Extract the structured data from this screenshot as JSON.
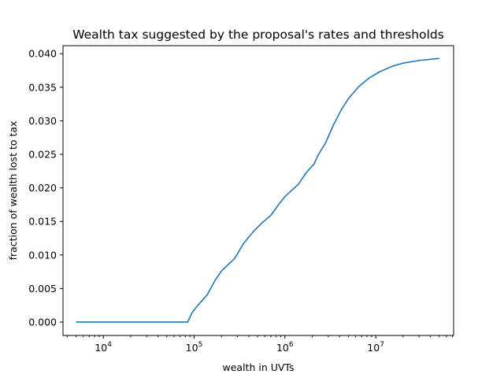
{
  "chart_data": {
    "type": "line",
    "title": "Wealth tax suggested by the proposal's rates and thresholds",
    "xlabel": "wealth in UVTs",
    "ylabel": "fraction of wealth lost to tax",
    "xscale": "log",
    "xlim": [
      3600,
      72000000
    ],
    "ylim": [
      -0.002,
      0.0412
    ],
    "grid": false,
    "legend": "none",
    "colors": {
      "line": "#1f77b4"
    },
    "x_ticks": [
      {
        "value": 10000,
        "base": "10",
        "exp": "4"
      },
      {
        "value": 100000,
        "base": "10",
        "exp": "5"
      },
      {
        "value": 1000000,
        "base": "10",
        "exp": "6"
      },
      {
        "value": 10000000,
        "base": "10",
        "exp": "7"
      }
    ],
    "y_ticks": [
      {
        "value": 0.0,
        "label": "0.000"
      },
      {
        "value": 0.005,
        "label": "0.005"
      },
      {
        "value": 0.01,
        "label": "0.010"
      },
      {
        "value": 0.015,
        "label": "0.015"
      },
      {
        "value": 0.02,
        "label": "0.020"
      },
      {
        "value": 0.025,
        "label": "0.025"
      },
      {
        "value": 0.03,
        "label": "0.030"
      },
      {
        "value": 0.035,
        "label": "0.035"
      },
      {
        "value": 0.04,
        "label": "0.040"
      }
    ],
    "series": [
      {
        "x": [
          5000,
          10000,
          30000,
          60000,
          85000,
          95000,
          110000,
          140000,
          170000,
          200000,
          280000,
          350000,
          450000,
          560000,
          700000,
          850000,
          1000000,
          1200000,
          1400000,
          1700000,
          2100000,
          2300000,
          2800000,
          3400000,
          4200000,
          5000000,
          6500000,
          8500000,
          11000000,
          15000000,
          20000000,
          30000000,
          50000000
        ],
        "y": [
          0.0,
          0.0,
          0.0,
          0.0,
          0.0,
          0.0014,
          0.0025,
          0.0041,
          0.0062,
          0.0076,
          0.0095,
          0.0117,
          0.0135,
          0.0148,
          0.0159,
          0.0175,
          0.0187,
          0.0197,
          0.0205,
          0.0222,
          0.0236,
          0.0248,
          0.0267,
          0.0293,
          0.0317,
          0.0333,
          0.0351,
          0.0364,
          0.0373,
          0.0381,
          0.0386,
          0.039,
          0.0393
        ]
      }
    ]
  }
}
